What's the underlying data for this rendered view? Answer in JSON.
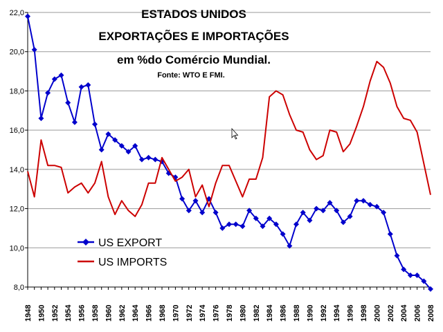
{
  "chart_data": {
    "type": "line",
    "title": "ESTADOS UNIDOS",
    "subtitle_lines": [
      "EXPORTAÇÕES E IMPORTAÇÕES",
      "em %do Comércio Mundial."
    ],
    "source": "Fonte: WTO E FMI.",
    "xlabel": "",
    "ylabel": "",
    "ylim": [
      8.0,
      22.0
    ],
    "yticks": [
      "8,0",
      "10,0",
      "12,0",
      "14,0",
      "16,0",
      "18,0",
      "20,0",
      "22,0"
    ],
    "xlim": [
      1948,
      2008
    ],
    "xticks": [
      1948,
      1950,
      1952,
      1954,
      1956,
      1958,
      1960,
      1962,
      1964,
      1966,
      1968,
      1970,
      1972,
      1974,
      1976,
      1978,
      1980,
      1982,
      1984,
      1986,
      1988,
      1990,
      1992,
      1994,
      1996,
      1998,
      2000,
      2002,
      2004,
      2006,
      2008
    ],
    "legend": {
      "placement": "bottom-left"
    },
    "series": [
      {
        "name": "US EXPORT",
        "color": "#0000cc",
        "marker": "diamond",
        "x": [
          1948,
          1949,
          1950,
          1951,
          1952,
          1953,
          1954,
          1955,
          1956,
          1957,
          1958,
          1959,
          1960,
          1961,
          1962,
          1963,
          1964,
          1965,
          1966,
          1967,
          1968,
          1969,
          1970,
          1971,
          1972,
          1973,
          1974,
          1975,
          1976,
          1977,
          1978,
          1979,
          1980,
          1981,
          1982,
          1983,
          1984,
          1985,
          1986,
          1987,
          1988,
          1989,
          1990,
          1991,
          1992,
          1993,
          1994,
          1995,
          1996,
          1997,
          1998,
          1999,
          2000,
          2001,
          2002,
          2003,
          2004,
          2005,
          2006,
          2007,
          2008
        ],
        "values": [
          21.8,
          20.1,
          16.6,
          17.9,
          18.6,
          18.8,
          17.4,
          16.4,
          18.2,
          18.3,
          16.3,
          15.0,
          15.8,
          15.5,
          15.2,
          14.9,
          15.2,
          14.5,
          14.6,
          14.5,
          14.4,
          13.8,
          13.6,
          12.5,
          11.9,
          12.4,
          11.8,
          12.5,
          11.8,
          11.0,
          11.2,
          11.2,
          11.1,
          11.9,
          11.5,
          11.1,
          11.5,
          11.2,
          10.7,
          10.1,
          11.2,
          11.8,
          11.4,
          12.0,
          11.9,
          12.3,
          11.9,
          11.3,
          11.6,
          12.4,
          12.4,
          12.2,
          12.1,
          11.8,
          10.7,
          9.6,
          8.9,
          8.6,
          8.6,
          8.3,
          7.9
        ]
      },
      {
        "name": "US IMPORTS",
        "color": "#cc0000",
        "marker": "none",
        "x": [
          1948,
          1949,
          1950,
          1951,
          1952,
          1953,
          1954,
          1955,
          1956,
          1957,
          1958,
          1959,
          1960,
          1961,
          1962,
          1963,
          1964,
          1965,
          1966,
          1967,
          1968,
          1969,
          1970,
          1971,
          1972,
          1973,
          1974,
          1975,
          1976,
          1977,
          1978,
          1979,
          1980,
          1981,
          1982,
          1983,
          1984,
          1985,
          1986,
          1987,
          1988,
          1989,
          1990,
          1991,
          1992,
          1993,
          1994,
          1995,
          1996,
          1997,
          1998,
          1999,
          2000,
          2001,
          2002,
          2003,
          2004,
          2005,
          2006,
          2007,
          2008
        ],
        "values": [
          13.9,
          12.6,
          15.5,
          14.2,
          14.2,
          14.1,
          12.8,
          13.1,
          13.3,
          12.8,
          13.3,
          14.4,
          12.6,
          11.7,
          12.4,
          11.9,
          11.6,
          12.2,
          13.3,
          13.3,
          14.6,
          14.0,
          13.4,
          13.6,
          14.0,
          12.6,
          13.2,
          12.1,
          13.3,
          14.2,
          14.2,
          13.4,
          12.6,
          13.5,
          13.5,
          14.6,
          17.7,
          18.0,
          17.8,
          16.8,
          16.0,
          15.9,
          15.0,
          14.5,
          14.7,
          16.0,
          15.9,
          14.9,
          15.3,
          16.2,
          17.2,
          18.5,
          19.5,
          19.2,
          18.4,
          17.2,
          16.6,
          16.5,
          15.9,
          14.3,
          12.7
        ]
      }
    ]
  }
}
